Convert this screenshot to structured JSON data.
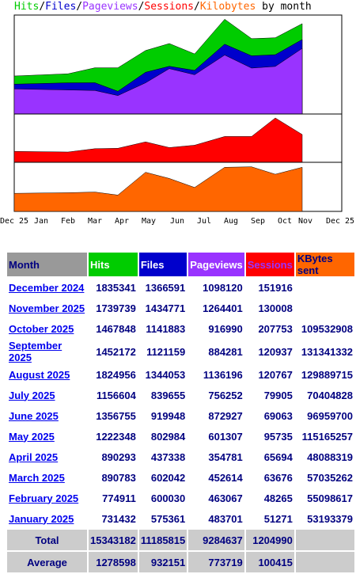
{
  "title": {
    "parts": [
      {
        "text": "Hits",
        "color": "#00cc00"
      },
      {
        "text": "/",
        "color": "#000000"
      },
      {
        "text": "Files",
        "color": "#0000cc"
      },
      {
        "text": "/",
        "color": "#000000"
      },
      {
        "text": "Pageviews",
        "color": "#9933ff"
      },
      {
        "text": "/",
        "color": "#000000"
      },
      {
        "text": "Sessions",
        "color": "#ff0000"
      },
      {
        "text": "/",
        "color": "#000000"
      },
      {
        "text": "Kilobytes",
        "color": "#ff6600"
      },
      {
        "text": " by month",
        "color": "#000000"
      }
    ]
  },
  "chart_data": {
    "type": "area",
    "x_tick_labels": [
      "Dec 25",
      "Jan",
      "Feb",
      "Mar",
      "Apr",
      "May",
      "Jun",
      "Jul",
      "Aug",
      "Sep",
      "Oct",
      "Nov",
      "Dec 25"
    ],
    "months": [
      "Jan",
      "Feb",
      "Mar",
      "Apr",
      "May",
      "Jun",
      "Jul",
      "Aug",
      "Sep",
      "Oct",
      "Nov"
    ],
    "series": [
      {
        "name": "Hits",
        "color": "#00cc00",
        "values": [
          731432,
          774911,
          890783,
          890293,
          1222348,
          1356755,
          1156604,
          1824956,
          1452172,
          1467848,
          1739739
        ]
      },
      {
        "name": "Files",
        "color": "#0000cc",
        "values": [
          575361,
          600030,
          602042,
          437338,
          802984,
          919948,
          839655,
          1344053,
          1121159,
          1141883,
          1434771
        ]
      },
      {
        "name": "Pageviews",
        "color": "#9933ff",
        "values": [
          483701,
          463067,
          452614,
          354781,
          601307,
          872927,
          756252,
          1136196,
          884281,
          916990,
          1264401
        ]
      },
      {
        "name": "Sessions",
        "color": "#ff0000",
        "values": [
          51271,
          48265,
          63676,
          65694,
          95735,
          69063,
          79905,
          120767,
          120937,
          207753,
          130008
        ]
      },
      {
        "name": "Kilobytes",
        "color": "#ff6600",
        "values": [
          53193379,
          55098617,
          57035262,
          48088319,
          115165257,
          96959700,
          70404828,
          129889715,
          131341332,
          109532908,
          129889715
        ]
      }
    ]
  },
  "table": {
    "headers": [
      {
        "label": "Month",
        "bg": "#999999"
      },
      {
        "label": "Hits",
        "bg": "#00cc00"
      },
      {
        "label": "Files",
        "bg": "#0000cc"
      },
      {
        "label": "Pageviews",
        "bg": "#9933ff"
      },
      {
        "label": "Sessions",
        "bg": "#ff0000"
      },
      {
        "label": "KBytes sent",
        "bg": "#ff6600"
      }
    ],
    "rows": [
      {
        "month": "December 2024",
        "hits": "1835341",
        "files": "1366591",
        "pageviews": "1098120",
        "sessions": "151916",
        "kbytes": ""
      },
      {
        "month": "November 2025",
        "hits": "1739739",
        "files": "1434771",
        "pageviews": "1264401",
        "sessions": "130008",
        "kbytes": ""
      },
      {
        "month": "October 2025",
        "hits": "1467848",
        "files": "1141883",
        "pageviews": "916990",
        "sessions": "207753",
        "kbytes": "109532908"
      },
      {
        "month": "September 2025",
        "hits": "1452172",
        "files": "1121159",
        "pageviews": "884281",
        "sessions": "120937",
        "kbytes": "131341332"
      },
      {
        "month": "August 2025",
        "hits": "1824956",
        "files": "1344053",
        "pageviews": "1136196",
        "sessions": "120767",
        "kbytes": "129889715"
      },
      {
        "month": "July 2025",
        "hits": "1156604",
        "files": "839655",
        "pageviews": "756252",
        "sessions": "79905",
        "kbytes": "70404828"
      },
      {
        "month": "June 2025",
        "hits": "1356755",
        "files": "919948",
        "pageviews": "872927",
        "sessions": "69063",
        "kbytes": "96959700"
      },
      {
        "month": "May 2025",
        "hits": "1222348",
        "files": "802984",
        "pageviews": "601307",
        "sessions": "95735",
        "kbytes": "115165257"
      },
      {
        "month": "April 2025",
        "hits": "890293",
        "files": "437338",
        "pageviews": "354781",
        "sessions": "65694",
        "kbytes": "48088319"
      },
      {
        "month": "March 2025",
        "hits": "890783",
        "files": "602042",
        "pageviews": "452614",
        "sessions": "63676",
        "kbytes": "57035262"
      },
      {
        "month": "February 2025",
        "hits": "774911",
        "files": "600030",
        "pageviews": "463067",
        "sessions": "48265",
        "kbytes": "55098617"
      },
      {
        "month": "January 2025",
        "hits": "731432",
        "files": "575361",
        "pageviews": "483701",
        "sessions": "51271",
        "kbytes": "53193379"
      }
    ],
    "total": {
      "label": "Total",
      "hits": "15343182",
      "files": "11185815",
      "pageviews": "9284637",
      "sessions": "1204990",
      "kbytes": ""
    },
    "average": {
      "label": "Average",
      "hits": "1278598",
      "files": "932151",
      "pageviews": "773719",
      "sessions": "100415",
      "kbytes": ""
    }
  }
}
